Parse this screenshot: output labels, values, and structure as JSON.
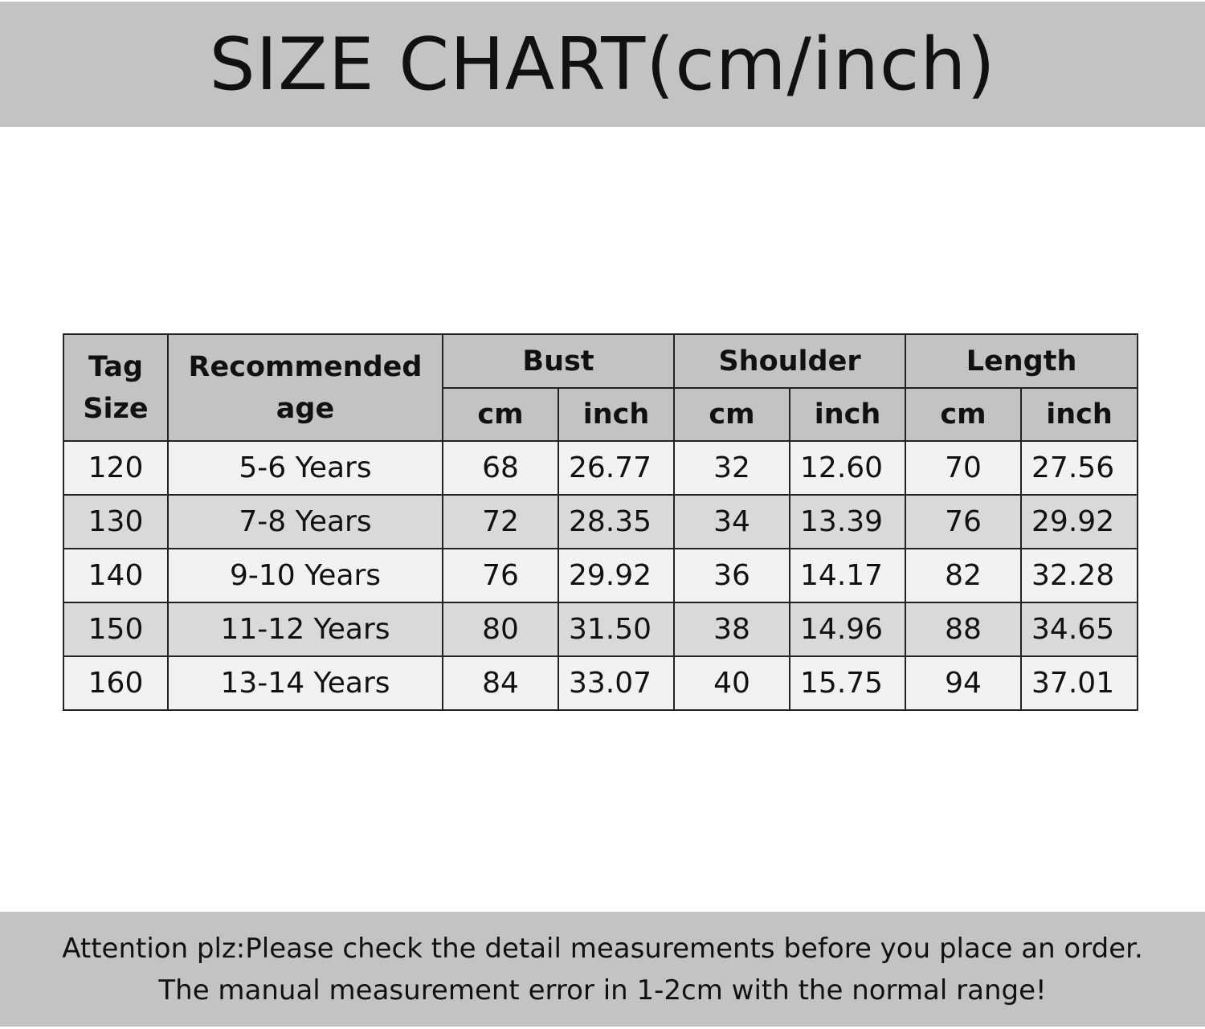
{
  "title": "SIZE CHART(cm/inch)",
  "table": {
    "headers": {
      "tag_size": "Tag Size",
      "age": "Recommended age",
      "bust": "Bust",
      "shoulder": "Shoulder",
      "length": "Length",
      "cm": "cm",
      "inch": "inch"
    },
    "rows": [
      {
        "tag": "120",
        "age": "5-6 Years",
        "bust_cm": "68",
        "bust_in": "26.77",
        "sh_cm": "32",
        "sh_in": "12.60",
        "len_cm": "70",
        "len_in": "27.56"
      },
      {
        "tag": "130",
        "age": "7-8 Years",
        "bust_cm": "72",
        "bust_in": "28.35",
        "sh_cm": "34",
        "sh_in": "13.39",
        "len_cm": "76",
        "len_in": "29.92"
      },
      {
        "tag": "140",
        "age": "9-10 Years",
        "bust_cm": "76",
        "bust_in": "29.92",
        "sh_cm": "36",
        "sh_in": "14.17",
        "len_cm": "82",
        "len_in": "32.28"
      },
      {
        "tag": "150",
        "age": "11-12 Years",
        "bust_cm": "80",
        "bust_in": "31.50",
        "sh_cm": "38",
        "sh_in": "14.96",
        "len_cm": "88",
        "len_in": "34.65"
      },
      {
        "tag": "160",
        "age": "13-14 Years",
        "bust_cm": "84",
        "bust_in": "33.07",
        "sh_cm": "40",
        "sh_in": "15.75",
        "len_cm": "94",
        "len_in": "37.01"
      }
    ]
  },
  "notice": {
    "line1": "Attention plz:Please check the detail measurements before you place an order.",
    "line2": "The manual measurement error in 1-2cm with the normal range!"
  },
  "colors": {
    "header_gray": "#c3c3c3",
    "row_light": "#f2f2f2",
    "row_dark": "#d9d9d9"
  }
}
